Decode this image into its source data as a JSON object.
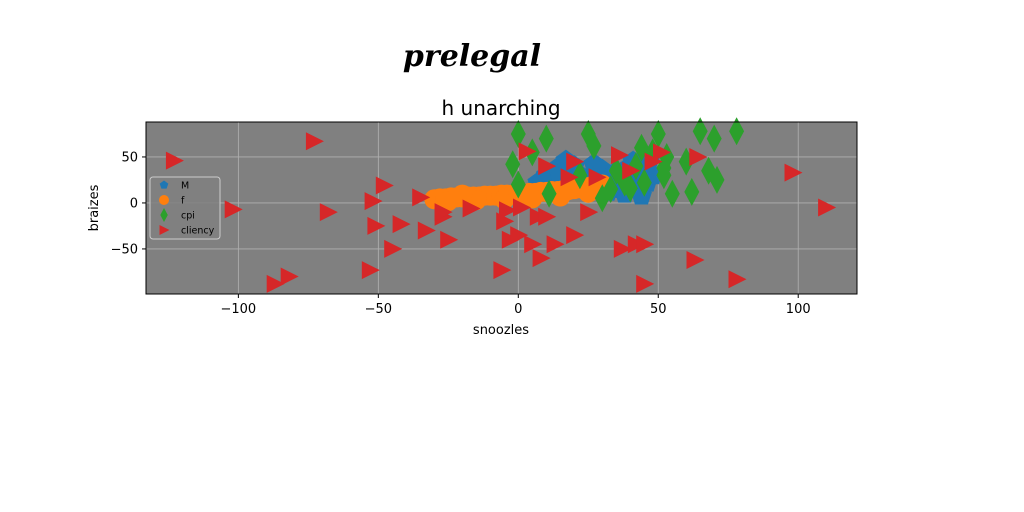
{
  "figure": {
    "suptitle": "prelegal"
  },
  "chart_data": {
    "type": "scatter",
    "title": "h unarching",
    "xlabel": "snoozles",
    "ylabel": "braizes",
    "xlim": [
      -133,
      121
    ],
    "ylim": [
      -99,
      88
    ],
    "xticks": [
      -100,
      -50,
      0,
      50,
      100
    ],
    "xtick_labels": [
      "−100",
      "−50",
      "0",
      "50",
      "100"
    ],
    "yticks": [
      -50,
      0,
      50
    ],
    "ytick_labels": [
      "−50",
      "0",
      "50"
    ],
    "grid": true,
    "background": "#808080",
    "legend_position": "center-left",
    "series": [
      {
        "name": "M",
        "marker": "pentagon",
        "color": "#1f77b4",
        "x": [
          7,
          10,
          14,
          15,
          18,
          20,
          22,
          23,
          25,
          27,
          30,
          33,
          35,
          36,
          37,
          38,
          39,
          40,
          41,
          42,
          43,
          44,
          45,
          46,
          47,
          48,
          17,
          28,
          32,
          19
        ],
        "y": [
          22,
          30,
          38,
          28,
          35,
          40,
          30,
          18,
          24,
          42,
          36,
          28,
          34,
          20,
          15,
          10,
          25,
          40,
          45,
          30,
          16,
          8,
          38,
          22,
          48,
          30,
          46,
          40,
          12,
          20
        ]
      },
      {
        "name": "f",
        "marker": "circle",
        "color": "#ff7f0e",
        "x": [
          -30,
          -28,
          -26,
          -24,
          -22,
          -20,
          -18,
          -16,
          -14,
          -12,
          -10,
          -8,
          -6,
          -4,
          -2,
          0,
          2,
          4,
          6,
          8,
          10,
          12,
          14,
          16,
          18,
          20,
          22,
          24,
          26,
          28,
          30,
          -25,
          -15,
          -5,
          5,
          15,
          25,
          -20,
          0,
          20
        ],
        "y": [
          4,
          5,
          5,
          6,
          6,
          6,
          7,
          7,
          7,
          8,
          8,
          8,
          9,
          9,
          9,
          10,
          10,
          11,
          11,
          12,
          12,
          13,
          13,
          14,
          14,
          15,
          16,
          17,
          18,
          19,
          20,
          2,
          3,
          4,
          5,
          7,
          11,
          9,
          12,
          16
        ]
      },
      {
        "name": "cpi",
        "marker": "thin_diamond",
        "color": "#2ca02c",
        "x": [
          0,
          0,
          -2,
          10,
          25,
          27,
          35,
          38,
          40,
          42,
          45,
          50,
          52,
          55,
          62,
          65,
          70,
          71,
          78,
          53,
          48,
          30,
          60,
          11,
          52,
          44,
          33,
          5,
          68,
          22
        ],
        "y": [
          75,
          20,
          42,
          70,
          75,
          62,
          35,
          22,
          16,
          40,
          22,
          75,
          30,
          10,
          12,
          78,
          70,
          25,
          78,
          50,
          55,
          5,
          45,
          10,
          38,
          60,
          15,
          55,
          35,
          30
        ]
      },
      {
        "name": "cliency",
        "marker": "triangle_right",
        "color": "#d62728",
        "x": [
          -123,
          -73,
          -102,
          -68,
          -53,
          -51,
          -48,
          -45,
          -42,
          -35,
          -33,
          -27,
          -27,
          -25,
          -17,
          -6,
          -5,
          -3,
          0,
          1,
          3,
          5,
          7,
          8,
          10,
          10,
          13,
          18,
          20,
          20,
          25,
          28,
          36,
          37,
          40,
          42,
          45,
          45,
          48,
          51,
          63,
          64,
          78,
          98,
          110,
          -52,
          -87,
          -82,
          -4
        ],
        "y": [
          46,
          67,
          -7,
          -10,
          -73,
          -25,
          19,
          -50,
          -23,
          6,
          -30,
          -15,
          -10,
          -40,
          -6,
          -73,
          -20,
          -40,
          -35,
          -5,
          56,
          -45,
          -15,
          -60,
          -15,
          40,
          -45,
          28,
          45,
          -35,
          -10,
          28,
          52,
          -50,
          35,
          -45,
          -88,
          -45,
          45,
          55,
          -62,
          50,
          -83,
          33,
          -5,
          2,
          -88,
          -80,
          -8
        ]
      }
    ]
  }
}
